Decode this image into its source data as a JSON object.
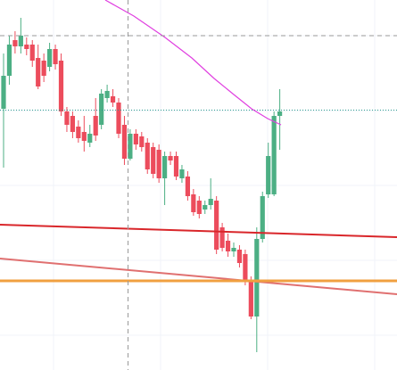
{
  "chart_data": {
    "type": "candlestick",
    "open": [
      293,
      330,
      370,
      363,
      365,
      365,
      350,
      347,
      340,
      360,
      347,
      290,
      285,
      273,
      267,
      255,
      285,
      275,
      305,
      307,
      300,
      275,
      237,
      265,
      262,
      255,
      250,
      247,
      215,
      240,
      240,
      215,
      217,
      197,
      190,
      180,
      185,
      190,
      160,
      145,
      133,
      135,
      130,
      100,
      60,
      147,
      197,
      197,
      285
    ],
    "high": [
      355,
      375,
      380,
      395,
      373,
      370,
      365,
      355,
      367,
      365,
      355,
      295,
      290,
      280,
      285,
      275,
      305,
      315,
      320,
      315,
      305,
      285,
      270,
      270,
      267,
      260,
      255,
      253,
      245,
      245,
      245,
      230,
      223,
      203,
      195,
      190,
      215,
      195,
      165,
      153,
      143,
      140,
      135,
      105,
      160,
      200,
      255,
      290,
      315
    ],
    "low": [
      227,
      320,
      355,
      355,
      353,
      340,
      315,
      323,
      335,
      337,
      285,
      267,
      260,
      255,
      245,
      250,
      257,
      270,
      300,
      295,
      260,
      230,
      235,
      247,
      245,
      220,
      215,
      210,
      185,
      230,
      213,
      210,
      190,
      173,
      170,
      175,
      180,
      130,
      133,
      127,
      127,
      115,
      95,
      57,
      20,
      143,
      193,
      195,
      247
    ],
    "close": [
      330,
      365,
      363,
      375,
      360,
      347,
      318,
      330,
      360,
      343,
      290,
      275,
      267,
      260,
      257,
      265,
      263,
      310,
      313,
      300,
      265,
      237,
      265,
      253,
      250,
      225,
      220,
      215,
      240,
      235,
      217,
      225,
      195,
      177,
      175,
      185,
      192,
      135,
      137,
      133,
      137,
      120,
      100,
      60,
      147,
      195,
      240,
      285,
      290
    ],
    "ylim": [
      0,
      415
    ],
    "up_color": "#4caf84",
    "down_color": "#ec4c5c"
  }
}
